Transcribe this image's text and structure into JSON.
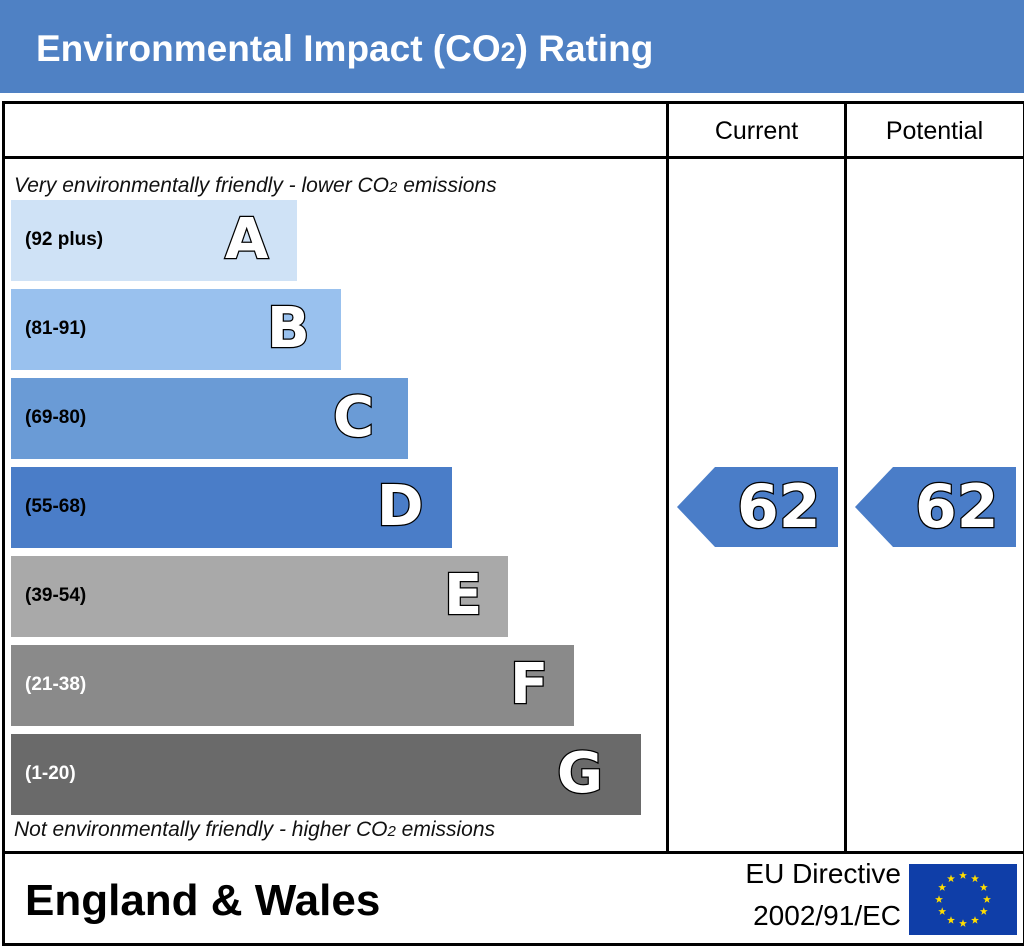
{
  "header": {
    "title_before": "Environmental Impact (CO",
    "title_sub": "2",
    "title_after": ") Rating",
    "background": "#4f81c4"
  },
  "columns": {
    "current": "Current",
    "potential": "Potential"
  },
  "captions": {
    "top_before": "Very environmentally friendly - lower CO",
    "top_sub": "2",
    "top_after": " emissions",
    "bottom_before": "Not environmentally friendly - higher CO",
    "bottom_sub": "2",
    "bottom_after": " emissions"
  },
  "bands": [
    {
      "letter": "A",
      "range": "(92 plus)",
      "color": "#cfe2f6",
      "text_color": "#000000"
    },
    {
      "letter": "B",
      "range": "(81-91)",
      "color": "#99c1ee",
      "text_color": "#000000"
    },
    {
      "letter": "C",
      "range": "(69-80)",
      "color": "#6a9bd6",
      "text_color": "#000000"
    },
    {
      "letter": "D",
      "range": "(55-68)",
      "color": "#4a7dc8",
      "text_color": "#000000"
    },
    {
      "letter": "E",
      "range": "(39-54)",
      "color": "#a9a9a9",
      "text_color": "#000000"
    },
    {
      "letter": "F",
      "range": "(21-38)",
      "color": "#8a8a8a",
      "text_color": "#ffffff"
    },
    {
      "letter": "G",
      "range": "(1-20)",
      "color": "#6a6a6a",
      "text_color": "#ffffff"
    }
  ],
  "ratings": {
    "current": "62",
    "potential": "62",
    "arrow_color": "#4a7dc8"
  },
  "footer": {
    "region": "England & Wales",
    "directive_line1": "EU Directive",
    "directive_line2": "2002/91/EC",
    "flag_icon": "eu-flag-icon",
    "flag_color": "#0f3ea8",
    "star_color": "#ffdd00"
  }
}
